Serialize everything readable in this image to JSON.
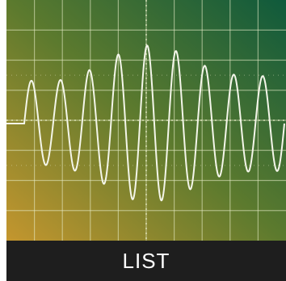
{
  "tile": {
    "label": "LIST",
    "image_icon": "oscilloscope-waveform-image"
  },
  "colors": {
    "screen_top_right": "#0f5a3c",
    "screen_mid": "#5c7a2e",
    "screen_bottom_left": "#c4962e",
    "grid_line": "#e8ecc8",
    "trace": "#f4f6ea",
    "label_background": "#1e1e1e",
    "label_text": "#ffffff"
  },
  "waveform": {
    "amplitudes": [
      0.55,
      0.52,
      0.6,
      0.75,
      0.95,
      1.0,
      0.9,
      0.72,
      0.62,
      0.6,
      0.6
    ],
    "cycles": 9
  }
}
